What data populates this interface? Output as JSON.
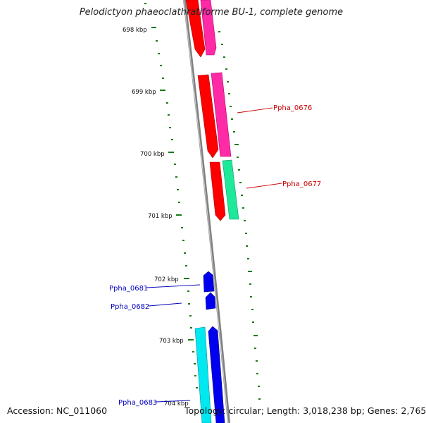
{
  "title": "Pelodictyon phaeoclathratiforme BU-1, complete genome",
  "accession": "Accession: NC_011060",
  "topology": "Topology: circular; Length: 3,018,238 bp; Genes: 2,765",
  "ruler_ticks": [
    "698 kbp",
    "699 kbp",
    "700 kbp",
    "701 kbp",
    "702 kbp",
    "703 kbp",
    "704 kbp"
  ],
  "gene_labels": [
    {
      "label": "Ppha_0676",
      "color": "#cc0000"
    },
    {
      "label": "Ppha_0677",
      "color": "#cc0000"
    },
    {
      "label": "Ppha_0681",
      "color": "#0000bb"
    },
    {
      "label": "Ppha_0682",
      "color": "#0000bb"
    },
    {
      "label": "Ppha_0683",
      "color": "#0000bb"
    }
  ],
  "colors": {
    "backbone": "#808080",
    "ruler_tick": "#1a7a1a",
    "gene_red": "#ff0000",
    "gene_magenta": "#ff2aa6",
    "gene_green": "#1ee89a",
    "gene_blue": "#0000ee",
    "gene_cyan": "#00e8f0"
  }
}
